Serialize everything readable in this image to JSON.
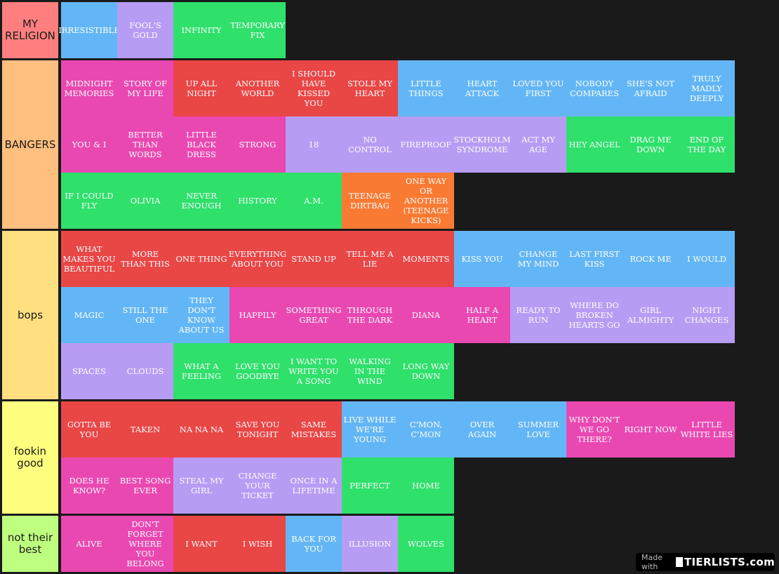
{
  "tiers": [
    {
      "label": "MY RELIGION",
      "color": "#ff7f7f",
      "items": [
        {
          "text": "IRRESISTIBLE",
          "color": "#63b6f5"
        },
        {
          "text": "FOOL'S GOLD",
          "color": "#b79cf4"
        },
        {
          "text": "INFINITY",
          "color": "#2fe06b"
        },
        {
          "text": "TEMPORARY FIX",
          "color": "#2fe06b"
        }
      ]
    },
    {
      "label": "BANGERS",
      "color": "#ffbf7f",
      "items": [
        {
          "text": "MIDNIGHT MEMORIES",
          "color": "#e948b1"
        },
        {
          "text": "STORY OF MY LIFE",
          "color": "#e948b1"
        },
        {
          "text": "UP ALL NIGHT",
          "color": "#e94646"
        },
        {
          "text": "ANOTHER WORLD",
          "color": "#e94646"
        },
        {
          "text": "I SHOULD HAVE KISSED YOU",
          "color": "#e94646"
        },
        {
          "text": "STOLE MY HEART",
          "color": "#e94646"
        },
        {
          "text": "LITTLE THINGS",
          "color": "#63b6f5"
        },
        {
          "text": "HEART ATTACK",
          "color": "#63b6f5"
        },
        {
          "text": "LOVED YOU FIRST",
          "color": "#63b6f5"
        },
        {
          "text": "NOBODY COMPARES",
          "color": "#63b6f5"
        },
        {
          "text": "SHE'S NOT AFRAID",
          "color": "#63b6f5"
        },
        {
          "text": "TRULY MADLY DEEPLY",
          "color": "#63b6f5"
        },
        {
          "text": "YOU & I",
          "color": "#e948b1"
        },
        {
          "text": "BETTER THAN WORDS",
          "color": "#e948b1"
        },
        {
          "text": "LITTLE BLACK DRESS",
          "color": "#e948b1"
        },
        {
          "text": "STRONG",
          "color": "#e948b1"
        },
        {
          "text": "18",
          "color": "#b79cf4"
        },
        {
          "text": "NO CONTROL",
          "color": "#b79cf4"
        },
        {
          "text": "FIREPROOF",
          "color": "#b79cf4"
        },
        {
          "text": "STOCKHOLM SYNDROME",
          "color": "#b79cf4"
        },
        {
          "text": "ACT MY AGE",
          "color": "#b79cf4"
        },
        {
          "text": "HEY ANGEL",
          "color": "#2fe06b"
        },
        {
          "text": "DRAG ME DOWN",
          "color": "#2fe06b"
        },
        {
          "text": "END OF THE DAY",
          "color": "#2fe06b"
        },
        {
          "text": "IF I COULD FLY",
          "color": "#2fe06b"
        },
        {
          "text": "OLIVIA",
          "color": "#2fe06b"
        },
        {
          "text": "NEVER ENOUGH",
          "color": "#2fe06b"
        },
        {
          "text": "HISTORY",
          "color": "#2fe06b"
        },
        {
          "text": "A.M.",
          "color": "#2fe06b"
        },
        {
          "text": "TEENAGE DIRTBAG",
          "color": "#f97a33"
        },
        {
          "text": "ONE WAY OR ANOTHER (TEENAGE KICKS)",
          "color": "#f97a33"
        }
      ]
    },
    {
      "label": "bops",
      "color": "#ffdf7f",
      "items": [
        {
          "text": "WHAT MAKES YOU BEAUTIFUL",
          "color": "#e94646"
        },
        {
          "text": "MORE THAN THIS",
          "color": "#e94646"
        },
        {
          "text": "ONE THING",
          "color": "#e94646"
        },
        {
          "text": "EVERYTHING ABOUT YOU",
          "color": "#e94646"
        },
        {
          "text": "STAND UP",
          "color": "#e94646"
        },
        {
          "text": "TELL ME A LIE",
          "color": "#e94646"
        },
        {
          "text": "MOMENTS",
          "color": "#e94646"
        },
        {
          "text": "KISS YOU",
          "color": "#63b6f5"
        },
        {
          "text": "CHANGE MY MIND",
          "color": "#63b6f5"
        },
        {
          "text": "LAST FIRST KISS",
          "color": "#63b6f5"
        },
        {
          "text": "ROCK ME",
          "color": "#63b6f5"
        },
        {
          "text": "I WOULD",
          "color": "#63b6f5"
        },
        {
          "text": "MAGIC",
          "color": "#63b6f5"
        },
        {
          "text": "STILL THE ONE",
          "color": "#63b6f5"
        },
        {
          "text": "THEY DON'T KNOW ABOUT US",
          "color": "#63b6f5"
        },
        {
          "text": "HAPPILY",
          "color": "#e948b1"
        },
        {
          "text": "SOMETHING GREAT",
          "color": "#e948b1"
        },
        {
          "text": "THROUGH THE DARK",
          "color": "#e948b1"
        },
        {
          "text": "DIANA",
          "color": "#e948b1"
        },
        {
          "text": "HALF A HEART",
          "color": "#e948b1"
        },
        {
          "text": "READY TO RUN",
          "color": "#b79cf4"
        },
        {
          "text": "WHERE DO BROKEN HEARTS GO",
          "color": "#b79cf4"
        },
        {
          "text": "GIRL ALMIGHTY",
          "color": "#b79cf4"
        },
        {
          "text": "NIGHT CHANGES",
          "color": "#b79cf4"
        },
        {
          "text": "SPACES",
          "color": "#b79cf4"
        },
        {
          "text": "CLOUDS",
          "color": "#b79cf4"
        },
        {
          "text": "WHAT A FEELING",
          "color": "#2fe06b"
        },
        {
          "text": "LOVE YOU GOODBYE",
          "color": "#2fe06b"
        },
        {
          "text": "I WANT TO WRITE YOU A SONG",
          "color": "#2fe06b"
        },
        {
          "text": "WALKING IN THE WIND",
          "color": "#2fe06b"
        },
        {
          "text": "LONG WAY DOWN",
          "color": "#2fe06b"
        }
      ]
    },
    {
      "label": "fookin good",
      "color": "#ffff7f",
      "items": [
        {
          "text": "GOTTA BE YOU",
          "color": "#e94646"
        },
        {
          "text": "TAKEN",
          "color": "#e94646"
        },
        {
          "text": "NA NA NA",
          "color": "#e94646"
        },
        {
          "text": "SAVE YOU TONIGHT",
          "color": "#e94646"
        },
        {
          "text": "SAME MISTAKES",
          "color": "#e94646"
        },
        {
          "text": "LIVE WHILE WE'RE YOUNG",
          "color": "#63b6f5"
        },
        {
          "text": "C'MON, C'MON",
          "color": "#63b6f5"
        },
        {
          "text": "OVER AGAIN",
          "color": "#63b6f5"
        },
        {
          "text": "SUMMER LOVE",
          "color": "#63b6f5"
        },
        {
          "text": "WHY DON'T WE GO THERE?",
          "color": "#e948b1"
        },
        {
          "text": "RIGHT NOW",
          "color": "#e948b1"
        },
        {
          "text": "LITTLE WHITE LIES",
          "color": "#e948b1"
        },
        {
          "text": "DOES HE KNOW?",
          "color": "#e948b1"
        },
        {
          "text": "BEST SONG EVER",
          "color": "#e948b1"
        },
        {
          "text": "STEAL MY GIRL",
          "color": "#b79cf4"
        },
        {
          "text": "CHANGE YOUR TICKET",
          "color": "#b79cf4"
        },
        {
          "text": "ONCE IN A LIFETIME",
          "color": "#b79cf4"
        },
        {
          "text": "PERFECT",
          "color": "#2fe06b"
        },
        {
          "text": "HOME",
          "color": "#2fe06b"
        }
      ]
    },
    {
      "label": "not their best",
      "color": "#bfff7f",
      "items": [
        {
          "text": "ALIVE",
          "color": "#e948b1"
        },
        {
          "text": "DON'T FORGET WHERE YOU BELONG",
          "color": "#e948b1"
        },
        {
          "text": "I WANT",
          "color": "#e94646"
        },
        {
          "text": "I WISH",
          "color": "#e94646"
        },
        {
          "text": "BACK FOR YOU",
          "color": "#63b6f5"
        },
        {
          "text": "ILLUSION",
          "color": "#b79cf4"
        },
        {
          "text": "WOLVES",
          "color": "#2fe06b"
        }
      ]
    }
  ],
  "badge": {
    "made_with": "Made with",
    "brand": "TIERLISTS.com"
  }
}
